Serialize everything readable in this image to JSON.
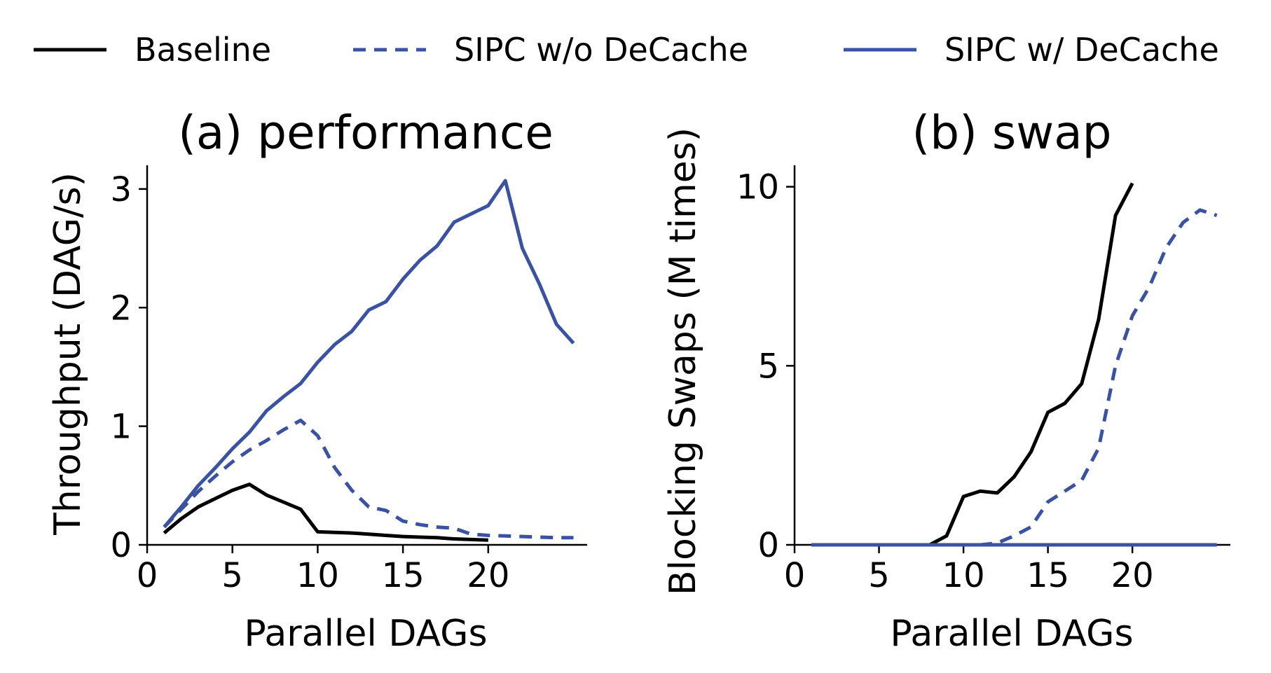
{
  "colors": {
    "baseline": "#000000",
    "sipc": "#3a52a4"
  },
  "legend": [
    {
      "label": "Baseline",
      "series": "baseline",
      "dashed": false
    },
    {
      "label": "SIPC w/o DeCache",
      "series": "sipc",
      "dashed": true
    },
    {
      "label": "SIPC w/ DeCache",
      "series": "sipc",
      "dashed": false
    }
  ],
  "chart_data": [
    {
      "type": "line",
      "title": "(a) performance",
      "xlabel": "Parallel DAGs",
      "ylabel": "Throughput (DAG/s)",
      "xlim": [
        0,
        25.8
      ],
      "ylim": [
        0,
        3.2
      ],
      "xticks": [
        0,
        5,
        10,
        15,
        20
      ],
      "yticks": [
        0,
        1,
        2,
        3
      ],
      "series": [
        {
          "name": "Baseline",
          "style": "solid",
          "color_key": "baseline",
          "x": [
            1,
            2,
            3,
            4,
            5,
            6,
            7,
            8,
            9,
            10,
            11,
            12,
            13,
            14,
            15,
            16,
            17,
            18,
            19,
            20
          ],
          "values": [
            0.1,
            0.22,
            0.32,
            0.39,
            0.46,
            0.51,
            0.42,
            0.36,
            0.3,
            0.11,
            0.105,
            0.1,
            0.09,
            0.08,
            0.07,
            0.065,
            0.06,
            0.05,
            0.045,
            0.04
          ]
        },
        {
          "name": "SIPC w/o DeCache",
          "style": "dashed",
          "color_key": "sipc",
          "x": [
            1,
            2,
            3,
            4,
            5,
            6,
            7,
            8,
            9,
            10,
            11,
            12,
            13,
            14,
            15,
            16,
            17,
            18,
            19,
            20,
            21,
            22,
            23,
            24,
            25
          ],
          "values": [
            0.15,
            0.3,
            0.45,
            0.58,
            0.7,
            0.8,
            0.88,
            0.97,
            1.05,
            0.92,
            0.65,
            0.46,
            0.32,
            0.29,
            0.2,
            0.17,
            0.15,
            0.14,
            0.09,
            0.08,
            0.075,
            0.07,
            0.065,
            0.06,
            0.06
          ]
        },
        {
          "name": "SIPC w/ DeCache",
          "style": "solid",
          "color_key": "sipc",
          "x": [
            1,
            2,
            3,
            4,
            5,
            6,
            7,
            8,
            9,
            10,
            11,
            12,
            13,
            14,
            15,
            16,
            17,
            18,
            19,
            20,
            21,
            22,
            23,
            24,
            25
          ],
          "values": [
            0.15,
            0.32,
            0.5,
            0.65,
            0.81,
            0.95,
            1.13,
            1.25,
            1.36,
            1.54,
            1.69,
            1.8,
            1.98,
            2.05,
            2.24,
            2.4,
            2.52,
            2.72,
            2.79,
            2.86,
            3.07,
            2.5,
            2.2,
            1.86,
            1.7
          ]
        }
      ]
    },
    {
      "type": "line",
      "title": "(b) swap",
      "xlabel": "Parallel DAGs",
      "ylabel": "Blocking Swaps (M times)",
      "xlim": [
        0,
        25.8
      ],
      "ylim": [
        0,
        10.6
      ],
      "xticks": [
        0,
        5,
        10,
        15,
        20
      ],
      "yticks": [
        0,
        5,
        10
      ],
      "series": [
        {
          "name": "Baseline",
          "style": "solid",
          "color_key": "baseline",
          "x": [
            1,
            2,
            3,
            4,
            5,
            6,
            7,
            8,
            9,
            10,
            11,
            12,
            13,
            14,
            15,
            16,
            17,
            18,
            19,
            20
          ],
          "values": [
            0,
            0,
            0,
            0,
            0,
            0,
            0,
            0,
            0.25,
            1.35,
            1.5,
            1.45,
            1.9,
            2.6,
            3.7,
            3.95,
            4.5,
            6.3,
            9.2,
            10.1
          ]
        },
        {
          "name": "SIPC w/o DeCache",
          "style": "dashed",
          "color_key": "sipc",
          "x": [
            1,
            2,
            3,
            4,
            5,
            6,
            7,
            8,
            9,
            10,
            11,
            12,
            13,
            14,
            15,
            16,
            17,
            18,
            19,
            20,
            21,
            22,
            23,
            24,
            25
          ],
          "values": [
            0,
            0,
            0,
            0,
            0,
            0,
            0,
            0,
            0,
            0,
            0,
            0.05,
            0.25,
            0.5,
            1.2,
            1.5,
            1.8,
            2.7,
            5.0,
            6.4,
            7.2,
            8.3,
            9.0,
            9.35,
            9.2
          ]
        },
        {
          "name": "SIPC w/ DeCache",
          "style": "solid",
          "color_key": "sipc",
          "x": [
            1,
            2,
            3,
            4,
            5,
            6,
            7,
            8,
            9,
            10,
            11,
            12,
            13,
            14,
            15,
            16,
            17,
            18,
            19,
            20,
            21,
            22,
            23,
            24,
            25
          ],
          "values": [
            0,
            0,
            0,
            0,
            0,
            0,
            0,
            0,
            0,
            0,
            0,
            0,
            0,
            0,
            0,
            0,
            0,
            0,
            0,
            0,
            0,
            0,
            0,
            0,
            0
          ]
        }
      ]
    }
  ]
}
